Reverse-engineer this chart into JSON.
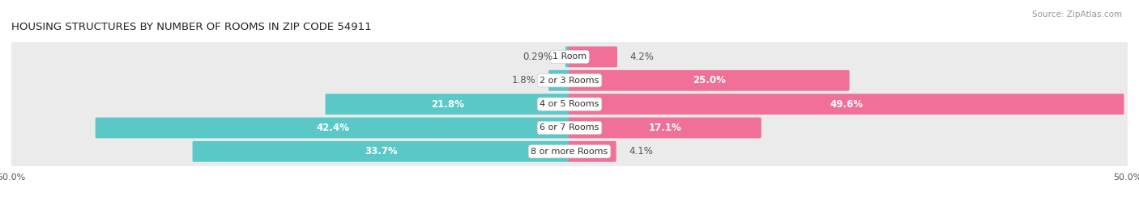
{
  "title": "HOUSING STRUCTURES BY NUMBER OF ROOMS IN ZIP CODE 54911",
  "source": "Source: ZipAtlas.com",
  "categories": [
    "1 Room",
    "2 or 3 Rooms",
    "4 or 5 Rooms",
    "6 or 7 Rooms",
    "8 or more Rooms"
  ],
  "owner_values": [
    0.29,
    1.8,
    21.8,
    42.4,
    33.7
  ],
  "renter_values": [
    4.2,
    25.0,
    49.6,
    17.1,
    4.1
  ],
  "owner_color": "#5BC8C8",
  "renter_color": "#F07098",
  "owner_color_light": "#A8E0E0",
  "renter_color_light": "#F9B0C8",
  "axis_limit": 50.0,
  "bar_height": 0.72,
  "row_bg_color": "#ebebeb",
  "row_sep_color": "#ffffff",
  "title_fontsize": 9.5,
  "source_fontsize": 7.5,
  "val_fontsize": 8.5,
  "cat_fontsize": 8,
  "legend_fontsize": 8.5,
  "owner_threshold": 8,
  "renter_threshold": 8
}
